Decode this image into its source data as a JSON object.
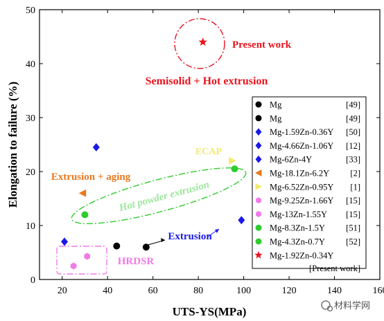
{
  "chart_data": {
    "type": "scatter",
    "xlabel": "UTS-YS(MPa)",
    "ylabel": "Elongation to failure (%)",
    "xlim": [
      10,
      160
    ],
    "ylim": [
      0,
      50
    ],
    "xticks": [
      "20",
      "40",
      "60",
      "80",
      "100",
      "120",
      "140",
      "160"
    ],
    "yticks": [
      "0",
      "10",
      "20",
      "30",
      "40",
      "50"
    ],
    "grid": false,
    "legend_position": "right",
    "series": [
      {
        "name": "Mg",
        "ref": "[49]",
        "marker": "circle",
        "color": "#000000",
        "points": [
          [
            44,
            6.2
          ]
        ]
      },
      {
        "name": "Mg",
        "ref": "[49]",
        "marker": "circle",
        "color": "#000000",
        "points": [
          [
            57,
            6
          ]
        ]
      },
      {
        "name": "Mg-1.59Zn-0.36Y",
        "ref": "[50]",
        "marker": "diamond",
        "color": "#1a1ae6",
        "points": [
          [
            21,
            7
          ]
        ]
      },
      {
        "name": "Mg-4.66Zn-1.06Y",
        "ref": "[12]",
        "marker": "diamond",
        "color": "#1a1ae6",
        "points": [
          [
            35,
            24.5
          ]
        ]
      },
      {
        "name": "Mg-6Zn-4Y",
        "ref": "[33]",
        "marker": "diamond",
        "color": "#1a1ae6",
        "points": [
          [
            99,
            11
          ]
        ]
      },
      {
        "name": "Mg-18.1Zn-6.2Y",
        "ref": "[2]",
        "marker": "triangle-left",
        "color": "#e8781e",
        "points": [
          [
            29,
            16
          ]
        ]
      },
      {
        "name": "Mg-6.52Zn-0.95Y",
        "ref": "[1]",
        "marker": "triangle-right",
        "color": "#f2ea6c",
        "points": [
          [
            95,
            22
          ]
        ]
      },
      {
        "name": "Mg-9.25Zn-1.66Y",
        "ref": "[15]",
        "marker": "hexagon",
        "color": "#f07ae8",
        "points": [
          [
            25,
            2.5
          ]
        ]
      },
      {
        "name": "Mg-13Zn-1.55Y",
        "ref": "[15]",
        "marker": "hexagon",
        "color": "#f07ae8",
        "points": [
          [
            31,
            4.3
          ]
        ]
      },
      {
        "name": "Mg-8.3Zn-1.5Y",
        "ref": "[51]",
        "marker": "circle",
        "color": "#2ecc2e",
        "points": [
          [
            30,
            12
          ]
        ]
      },
      {
        "name": "Mg-4.3Zn-0.7Y",
        "ref": "[52]",
        "marker": "circle",
        "color": "#2ecc2e",
        "points": [
          [
            96,
            20.5
          ]
        ]
      },
      {
        "name": "Mg-1.92Zn-0.34Y",
        "ref": "[Present work]",
        "marker": "star",
        "color": "#e8141e",
        "points": [
          [
            82,
            44
          ]
        ]
      }
    ],
    "annotations": [
      {
        "text": "Present work",
        "color": "#e8141e"
      },
      {
        "text": "Semisolid + Hot extrusion",
        "color": "#e8141e"
      },
      {
        "text": "ECAP",
        "color": "#f2ea6c"
      },
      {
        "text": "Extrusion + aging",
        "color": "#e8781e"
      },
      {
        "text": "Hot powder extrusion",
        "color": "#9be89b"
      },
      {
        "text": "Extrusion",
        "color": "#1a1ae6"
      },
      {
        "text": "HRDSR",
        "color": "#f07ae8"
      }
    ],
    "watermark": "材料学网"
  }
}
